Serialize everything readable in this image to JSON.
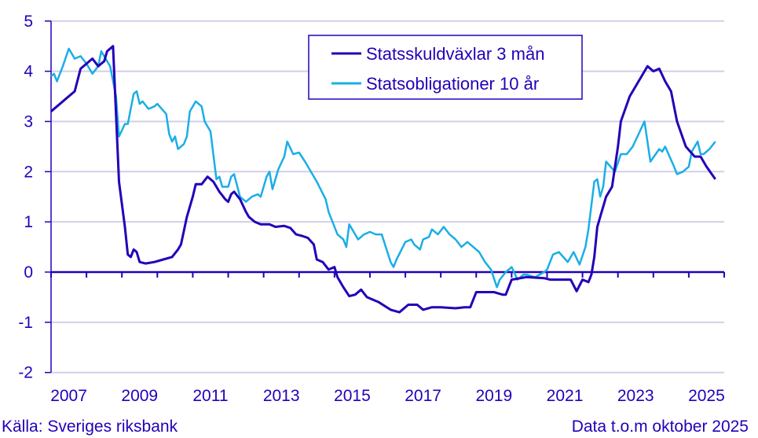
{
  "chart_data": {
    "type": "line",
    "title": "",
    "xlabel": "",
    "ylabel": "",
    "ylim": [
      -2,
      5
    ],
    "yticks": [
      "5",
      "4",
      "3",
      "2",
      "1",
      "0",
      "-1",
      "-2"
    ],
    "xrange": [
      "2007-01",
      "2025-12"
    ],
    "xtick_labels": [
      "2007",
      "2009",
      "2011",
      "2013",
      "2015",
      "2017",
      "2019",
      "2021",
      "2023",
      "2025"
    ],
    "grid": "horizontal",
    "legend_position": "top-center",
    "series": [
      {
        "name": "Statsskuldväxlar 3 mån",
        "color": "#2400b8",
        "points": [
          [
            "2007-01",
            3.2
          ],
          [
            "2007-03",
            3.3
          ],
          [
            "2007-06",
            3.45
          ],
          [
            "2007-09",
            3.6
          ],
          [
            "2007-11",
            4.05
          ],
          [
            "2008-01",
            4.15
          ],
          [
            "2008-03",
            4.25
          ],
          [
            "2008-05",
            4.1
          ],
          [
            "2008-07",
            4.2
          ],
          [
            "2008-08",
            4.4
          ],
          [
            "2008-10",
            4.5
          ],
          [
            "2008-12",
            1.8
          ],
          [
            "2009-02",
            0.9
          ],
          [
            "2009-03",
            0.35
          ],
          [
            "2009-04",
            0.3
          ],
          [
            "2009-05",
            0.45
          ],
          [
            "2009-06",
            0.4
          ],
          [
            "2009-07",
            0.2
          ],
          [
            "2009-09",
            0.17
          ],
          [
            "2009-12",
            0.2
          ],
          [
            "2010-03",
            0.25
          ],
          [
            "2010-06",
            0.3
          ],
          [
            "2010-08",
            0.45
          ],
          [
            "2010-09",
            0.55
          ],
          [
            "2010-11",
            1.1
          ],
          [
            "2011-01",
            1.5
          ],
          [
            "2011-02",
            1.75
          ],
          [
            "2011-04",
            1.75
          ],
          [
            "2011-06",
            1.9
          ],
          [
            "2011-08",
            1.8
          ],
          [
            "2011-10",
            1.6
          ],
          [
            "2011-12",
            1.45
          ],
          [
            "2012-01",
            1.4
          ],
          [
            "2012-02",
            1.55
          ],
          [
            "2012-03",
            1.6
          ],
          [
            "2012-05",
            1.45
          ],
          [
            "2012-07",
            1.2
          ],
          [
            "2012-08",
            1.1
          ],
          [
            "2012-10",
            1.0
          ],
          [
            "2012-12",
            0.95
          ],
          [
            "2013-03",
            0.95
          ],
          [
            "2013-05",
            0.9
          ],
          [
            "2013-08",
            0.92
          ],
          [
            "2013-10",
            0.88
          ],
          [
            "2013-12",
            0.75
          ],
          [
            "2014-02",
            0.72
          ],
          [
            "2014-04",
            0.68
          ],
          [
            "2014-06",
            0.55
          ],
          [
            "2014-07",
            0.25
          ],
          [
            "2014-09",
            0.2
          ],
          [
            "2014-11",
            0.05
          ],
          [
            "2015-01",
            0.1
          ],
          [
            "2015-02",
            -0.1
          ],
          [
            "2015-04",
            -0.3
          ],
          [
            "2015-06",
            -0.48
          ],
          [
            "2015-08",
            -0.45
          ],
          [
            "2015-10",
            -0.35
          ],
          [
            "2015-12",
            -0.5
          ],
          [
            "2016-04",
            -0.6
          ],
          [
            "2016-08",
            -0.75
          ],
          [
            "2016-11",
            -0.8
          ],
          [
            "2017-02",
            -0.65
          ],
          [
            "2017-05",
            -0.65
          ],
          [
            "2017-07",
            -0.75
          ],
          [
            "2017-10",
            -0.7
          ],
          [
            "2018-01",
            -0.7
          ],
          [
            "2018-06",
            -0.72
          ],
          [
            "2018-09",
            -0.7
          ],
          [
            "2018-11",
            -0.7
          ],
          [
            "2019-01",
            -0.4
          ],
          [
            "2019-07",
            -0.4
          ],
          [
            "2019-10",
            -0.45
          ],
          [
            "2019-11",
            -0.45
          ],
          [
            "2020-01",
            -0.15
          ],
          [
            "2020-06",
            -0.1
          ],
          [
            "2020-12",
            -0.12
          ],
          [
            "2021-02",
            -0.15
          ],
          [
            "2021-09",
            -0.15
          ],
          [
            "2021-11",
            -0.38
          ],
          [
            "2022-01",
            -0.15
          ],
          [
            "2022-03",
            -0.2
          ],
          [
            "2022-04",
            -0.05
          ],
          [
            "2022-05",
            0.3
          ],
          [
            "2022-06",
            0.9
          ],
          [
            "2022-09",
            1.5
          ],
          [
            "2022-11",
            1.7
          ],
          [
            "2023-01",
            2.5
          ],
          [
            "2023-02",
            3.0
          ],
          [
            "2023-05",
            3.5
          ],
          [
            "2023-08",
            3.8
          ],
          [
            "2023-11",
            4.1
          ],
          [
            "2024-01",
            4.0
          ],
          [
            "2024-03",
            4.05
          ],
          [
            "2024-05",
            3.8
          ],
          [
            "2024-07",
            3.6
          ],
          [
            "2024-09",
            3.0
          ],
          [
            "2024-12",
            2.5
          ],
          [
            "2025-03",
            2.3
          ],
          [
            "2025-05",
            2.3
          ],
          [
            "2025-07",
            2.1
          ],
          [
            "2025-10",
            1.85
          ]
        ]
      },
      {
        "name": "Statsobligationer 10 år",
        "color": "#1aaee6",
        "points": [
          [
            "2007-01",
            3.9
          ],
          [
            "2007-02",
            3.95
          ],
          [
            "2007-03",
            3.8
          ],
          [
            "2007-05",
            4.1
          ],
          [
            "2007-07",
            4.45
          ],
          [
            "2007-09",
            4.25
          ],
          [
            "2007-11",
            4.3
          ],
          [
            "2008-01",
            4.15
          ],
          [
            "2008-03",
            3.95
          ],
          [
            "2008-05",
            4.1
          ],
          [
            "2008-06",
            4.4
          ],
          [
            "2008-09",
            4.1
          ],
          [
            "2008-11",
            3.5
          ],
          [
            "2008-12",
            2.7
          ],
          [
            "2009-02",
            2.95
          ],
          [
            "2009-03",
            2.95
          ],
          [
            "2009-05",
            3.55
          ],
          [
            "2009-06",
            3.6
          ],
          [
            "2009-07",
            3.35
          ],
          [
            "2009-08",
            3.4
          ],
          [
            "2009-10",
            3.25
          ],
          [
            "2009-12",
            3.3
          ],
          [
            "2010-01",
            3.35
          ],
          [
            "2010-04",
            3.15
          ],
          [
            "2010-05",
            2.75
          ],
          [
            "2010-06",
            2.6
          ],
          [
            "2010-07",
            2.7
          ],
          [
            "2010-08",
            2.45
          ],
          [
            "2010-10",
            2.55
          ],
          [
            "2010-11",
            2.7
          ],
          [
            "2010-12",
            3.2
          ],
          [
            "2011-02",
            3.4
          ],
          [
            "2011-04",
            3.3
          ],
          [
            "2011-05",
            3.0
          ],
          [
            "2011-07",
            2.8
          ],
          [
            "2011-09",
            1.85
          ],
          [
            "2011-10",
            1.9
          ],
          [
            "2011-11",
            1.7
          ],
          [
            "2012-01",
            1.7
          ],
          [
            "2012-02",
            1.9
          ],
          [
            "2012-03",
            1.95
          ],
          [
            "2012-05",
            1.5
          ],
          [
            "2012-07",
            1.4
          ],
          [
            "2012-09",
            1.5
          ],
          [
            "2012-11",
            1.55
          ],
          [
            "2012-12",
            1.5
          ],
          [
            "2013-02",
            1.9
          ],
          [
            "2013-03",
            2.0
          ],
          [
            "2013-04",
            1.65
          ],
          [
            "2013-06",
            2.05
          ],
          [
            "2013-08",
            2.3
          ],
          [
            "2013-09",
            2.6
          ],
          [
            "2013-11",
            2.35
          ],
          [
            "2014-01",
            2.38
          ],
          [
            "2014-03",
            2.2
          ],
          [
            "2014-05",
            2.0
          ],
          [
            "2014-07",
            1.8
          ],
          [
            "2014-10",
            1.45
          ],
          [
            "2014-11",
            1.2
          ],
          [
            "2015-02",
            0.75
          ],
          [
            "2015-04",
            0.65
          ],
          [
            "2015-05",
            0.5
          ],
          [
            "2015-06",
            0.95
          ],
          [
            "2015-08",
            0.75
          ],
          [
            "2015-09",
            0.65
          ],
          [
            "2015-11",
            0.75
          ],
          [
            "2016-01",
            0.8
          ],
          [
            "2016-03",
            0.75
          ],
          [
            "2016-05",
            0.75
          ],
          [
            "2016-08",
            0.2
          ],
          [
            "2016-09",
            0.1
          ],
          [
            "2016-10",
            0.25
          ],
          [
            "2017-01",
            0.6
          ],
          [
            "2017-03",
            0.65
          ],
          [
            "2017-04",
            0.55
          ],
          [
            "2017-06",
            0.45
          ],
          [
            "2017-07",
            0.65
          ],
          [
            "2017-09",
            0.7
          ],
          [
            "2017-10",
            0.85
          ],
          [
            "2017-12",
            0.75
          ],
          [
            "2018-02",
            0.9
          ],
          [
            "2018-04",
            0.75
          ],
          [
            "2018-06",
            0.65
          ],
          [
            "2018-08",
            0.5
          ],
          [
            "2018-10",
            0.6
          ],
          [
            "2018-12",
            0.5
          ],
          [
            "2019-02",
            0.4
          ],
          [
            "2019-04",
            0.2
          ],
          [
            "2019-06",
            0.05
          ],
          [
            "2019-08",
            -0.3
          ],
          [
            "2019-09",
            -0.15
          ],
          [
            "2019-11",
            0.0
          ],
          [
            "2020-01",
            0.1
          ],
          [
            "2020-03",
            -0.15
          ],
          [
            "2020-05",
            -0.05
          ],
          [
            "2020-06",
            -0.05
          ],
          [
            "2020-09",
            -0.1
          ],
          [
            "2020-12",
            0.0
          ],
          [
            "2021-01",
            0.05
          ],
          [
            "2021-03",
            0.35
          ],
          [
            "2021-05",
            0.4
          ],
          [
            "2021-08",
            0.2
          ],
          [
            "2021-10",
            0.4
          ],
          [
            "2021-12",
            0.15
          ],
          [
            "2022-02",
            0.5
          ],
          [
            "2022-03",
            0.85
          ],
          [
            "2022-05",
            1.8
          ],
          [
            "2022-06",
            1.85
          ],
          [
            "2022-07",
            1.5
          ],
          [
            "2022-08",
            1.7
          ],
          [
            "2022-09",
            2.2
          ],
          [
            "2022-12",
            2.0
          ],
          [
            "2023-02",
            2.35
          ],
          [
            "2023-04",
            2.35
          ],
          [
            "2023-06",
            2.5
          ],
          [
            "2023-10",
            3.0
          ],
          [
            "2023-12",
            2.2
          ],
          [
            "2024-03",
            2.45
          ],
          [
            "2024-04",
            2.4
          ],
          [
            "2024-05",
            2.5
          ],
          [
            "2024-08",
            2.1
          ],
          [
            "2024-09",
            1.95
          ],
          [
            "2024-11",
            2.0
          ],
          [
            "2025-01",
            2.1
          ],
          [
            "2025-02",
            2.4
          ],
          [
            "2025-04",
            2.6
          ],
          [
            "2025-05",
            2.35
          ],
          [
            "2025-06",
            2.35
          ],
          [
            "2025-08",
            2.45
          ],
          [
            "2025-10",
            2.6
          ]
        ]
      }
    ]
  },
  "colors": {
    "axis": "#2400b8",
    "grid": "#d2cfe8",
    "text": "#2400b8"
  },
  "footer": {
    "source": "Källa: Sveriges riksbank",
    "note": "Data t.o.m oktober 2025"
  }
}
